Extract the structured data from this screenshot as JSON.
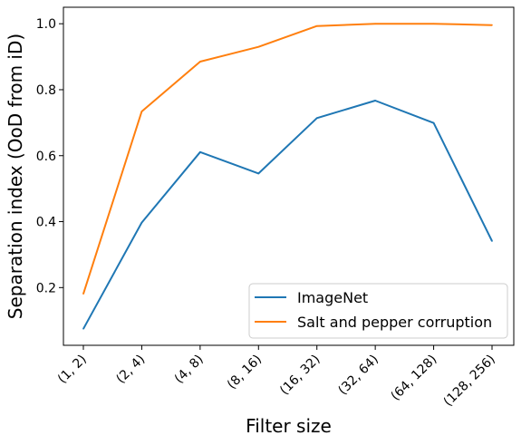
{
  "chart_data": {
    "type": "line",
    "xlabel": "Filter size",
    "ylabel": "Separation index (OoD from iD)",
    "categories": [
      "(1, 2)",
      "(2, 4)",
      "(4, 8)",
      "(8, 16)",
      "(16, 32)",
      "(32, 64)",
      "(64, 128)",
      "(128, 256)"
    ],
    "ylim": [
      0.025,
      1.05
    ],
    "yticks": [
      0.2,
      0.4,
      0.6,
      0.8,
      1.0
    ],
    "ytick_labels": [
      "0.2",
      "0.4",
      "0.6",
      "0.8",
      "1.0"
    ],
    "grid": false,
    "legend_position": "lower-right",
    "series": [
      {
        "name": "ImageNet",
        "color": "#1f77b4",
        "values": [
          0.075,
          0.397,
          0.611,
          0.546,
          0.714,
          0.767,
          0.699,
          0.341
        ]
      },
      {
        "name": "Salt and pepper corruption",
        "color": "#ff7f0e",
        "values": [
          0.181,
          0.734,
          0.885,
          0.93,
          0.993,
          1.0,
          1.0,
          0.996
        ]
      }
    ]
  }
}
